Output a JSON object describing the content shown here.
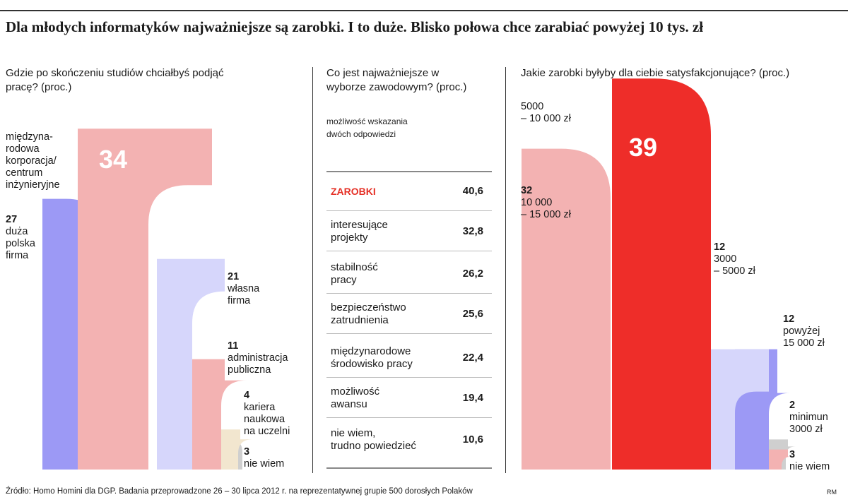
{
  "title": "Dla młodych informatyków najważniejsze są zarobki.  I to duże. Blisko połowa chce zarabiać powyżej 10 tys. zł",
  "source": "Źródło: Homo Homini dla DGP. Badania przeprowadzone 26 – 30 lipca 2012 r. na reprezentatywnej grupie 500 dorosłych Polaków",
  "author": "RM",
  "colors": {
    "pink": "#f3b2b2",
    "purple": "#9c99f5",
    "lavender": "#d6d6fb",
    "red": "#ee2d29",
    "beige": "#f2e6cf",
    "grey": "#cfcfcf",
    "highlight": "#e53026"
  },
  "chart_data": [
    {
      "type": "bar",
      "title": "Gdzie po skończeniu studiów chciałbyś podjąć pracę? (proc.)",
      "unit": "proc.",
      "categories": [
        "międzyna-rodowa korporacja/centrum inżynieryjne",
        "duża polska firma",
        "własna firma",
        "administracja publiczna",
        "kariera naukowa na uczelni",
        "nie wiem"
      ],
      "values": [
        34,
        27,
        21,
        11,
        4,
        3
      ],
      "labels": [
        {
          "num": "34",
          "text": "międzyna-\nrodowa\nkorporacja/\ncentrum\ninżynieryjne"
        },
        {
          "num": "27",
          "text": "duża\npolska\nfirma"
        },
        {
          "num": "21",
          "text": "własna\nfirma"
        },
        {
          "num": "11",
          "text": "administracja\npubliczna"
        },
        {
          "num": "4",
          "text": "kariera\nnaukowa\nna uczelni"
        },
        {
          "num": "3",
          "text": "nie wiem"
        }
      ]
    },
    {
      "type": "table",
      "title": "Co jest najważniejsze w wyborze zawodowym? (proc.)",
      "note": "możliwość wskazania\ndwóch odpowiedzi",
      "rows": [
        {
          "label": "ZAROBKI",
          "value": "40,6"
        },
        {
          "label": "interesujące\nprojekty",
          "value": "32,8"
        },
        {
          "label": "stabilność\npracy",
          "value": "26,2"
        },
        {
          "label": "bezpieczeństwo\nzatrudnienia",
          "value": "25,6"
        },
        {
          "label": "międzynarodowe\nśrodowisko pracy",
          "value": "22,4"
        },
        {
          "label": "możliwość\nawansu",
          "value": "19,4"
        },
        {
          "label": "nie wiem,\ntrudno powiedzieć",
          "value": "10,6"
        }
      ]
    },
    {
      "type": "bar",
      "title": "Jakie zarobki byłyby dla ciebie satysfakcjonujące? (proc.)",
      "unit": "proc.",
      "categories": [
        "10 000 – 15 000 zł",
        "5000 – 10 000 zł",
        "3000 – 5000 zł",
        "powyżej 15 000 zł",
        "minimum 3000 zł",
        "nie wiem"
      ],
      "values": [
        32,
        39,
        12,
        12,
        2,
        3
      ],
      "labels": [
        {
          "num": "32",
          "text": "10 000\n– 15 000 zł"
        },
        {
          "num": "39",
          "text": "5000\n– 10 000 zł"
        },
        {
          "num": "12",
          "text": "3000\n– 5000 zł"
        },
        {
          "num": "12",
          "text": "powyżej\n15 000 zł"
        },
        {
          "num": "2",
          "text": "minimun\n3000 zł"
        },
        {
          "num": "3",
          "text": "nie wiem"
        }
      ]
    }
  ]
}
